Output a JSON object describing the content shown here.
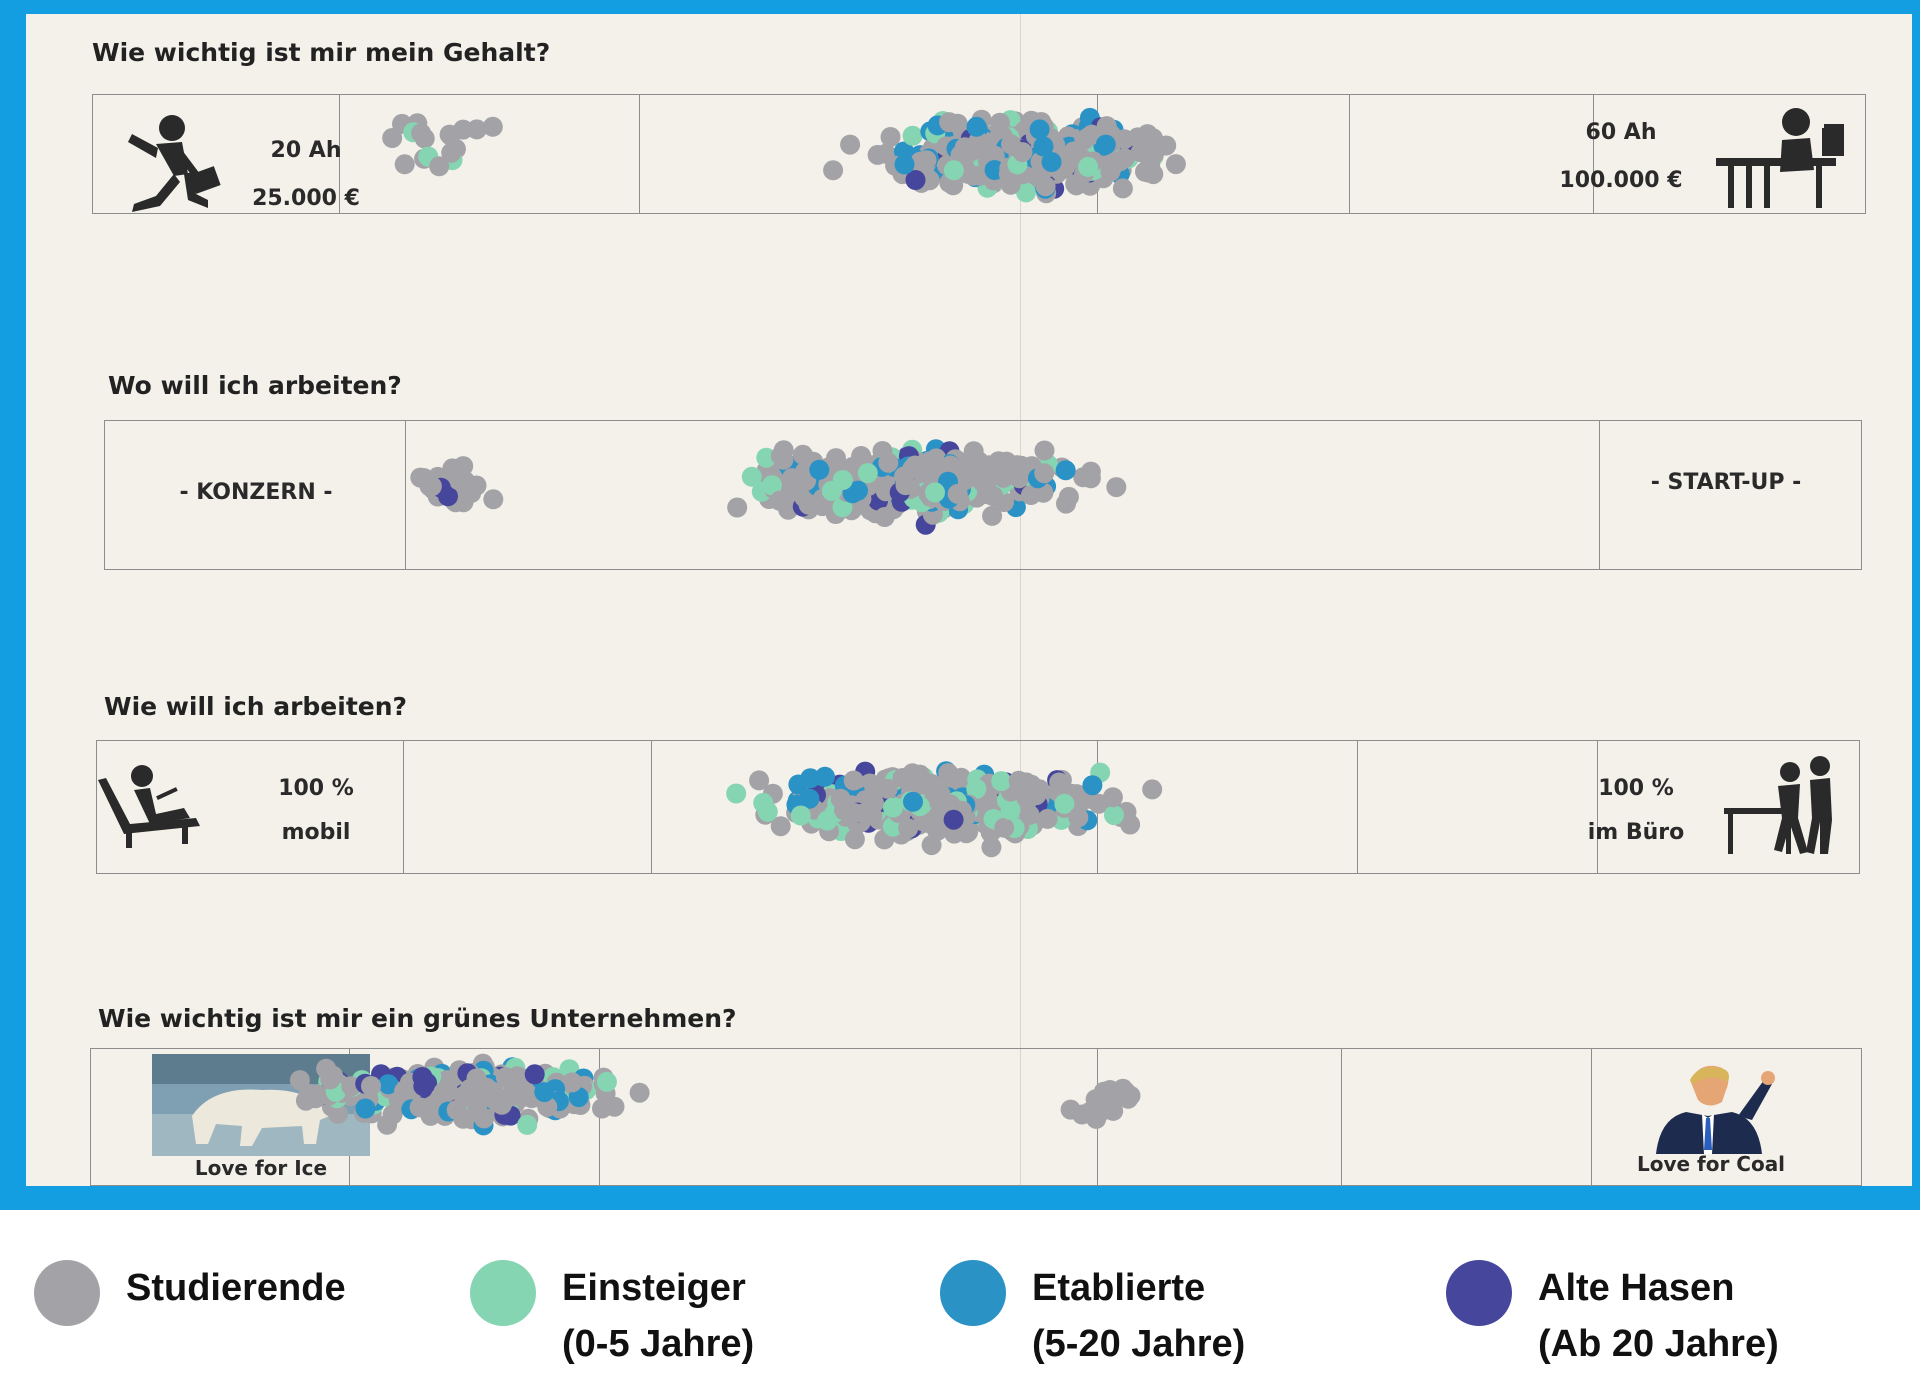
{
  "questions": {
    "q1": {
      "title": "Wie wichtig ist mir mein Gehalt?",
      "left_line1": "20 Ah",
      "left_line2": "25.000 €",
      "right_line1": "60 Ah",
      "right_line2": "100.000 €",
      "left_icon": "running-businessman-icon",
      "right_icon": "person-at-desk-icon"
    },
    "q2": {
      "title": "Wo will ich arbeiten?",
      "left_label": "-  KONZERN -",
      "right_label": "- START-UP -"
    },
    "q3": {
      "title": "Wie will ich arbeiten?",
      "left_line1": "100 %",
      "left_line2": "mobil",
      "right_line1": "100 %",
      "right_line2": "im Büro",
      "left_icon": "person-in-lounge-chair-icon",
      "right_icon": "office-colleagues-icon"
    },
    "q4": {
      "title": "Wie wichtig ist mir ein grünes Unternehmen?",
      "left_label": "Love for Ice",
      "right_label": "Love for Coal",
      "left_icon": "polar-bear-photo",
      "right_icon": "man-in-suit-pointing-icon"
    }
  },
  "legend": [
    {
      "line1": "Studierende",
      "line2": "",
      "color": "#a3a3a7"
    },
    {
      "line1": "Einsteiger",
      "line2": "(0-5 Jahre)",
      "color": "#86d5b2"
    },
    {
      "line1": "Etablierte",
      "line2": "(5-20 Jahre)",
      "color": "#2b92c6"
    },
    {
      "line1": "Alte Hasen",
      "line2": "(Ab 20 Jahre)",
      "color": "#46479c"
    }
  ]
}
